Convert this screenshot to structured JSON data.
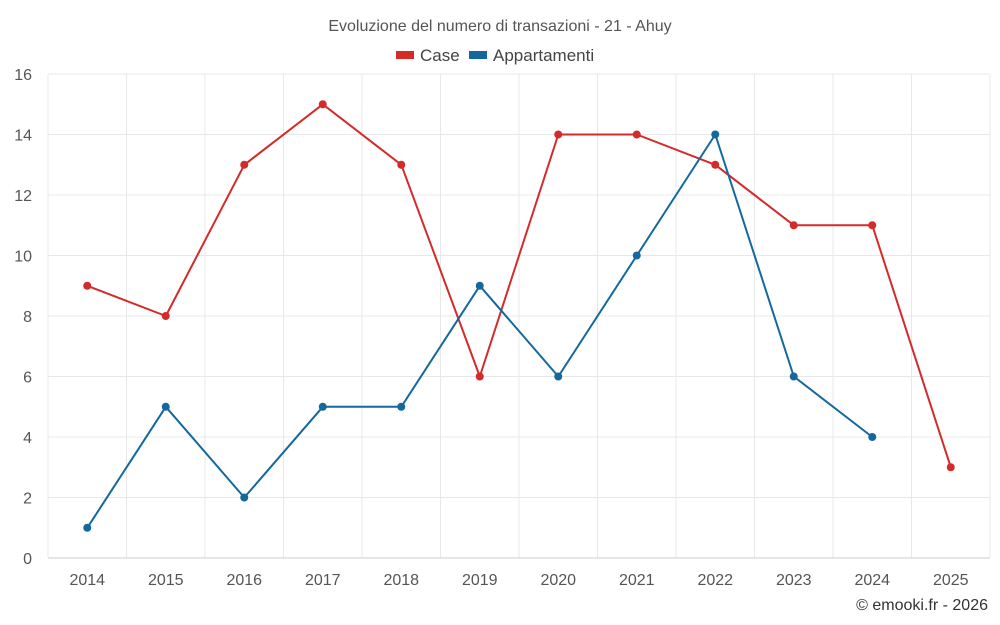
{
  "chart_data": {
    "type": "line",
    "title": "Evoluzione del numero di transazioni - 21 - Ahuy",
    "categories": [
      "2014",
      "2015",
      "2016",
      "2017",
      "2018",
      "2019",
      "2020",
      "2021",
      "2022",
      "2023",
      "2024",
      "2025"
    ],
    "series": [
      {
        "name": "Case",
        "color": "#d42a2a",
        "values": [
          9,
          8,
          13,
          15,
          13,
          6,
          14,
          14,
          13,
          11,
          11,
          3
        ]
      },
      {
        "name": "Appartamenti",
        "color": "#14689e",
        "values": [
          1,
          5,
          2,
          5,
          5,
          9,
          6,
          10,
          14,
          6,
          4,
          null
        ]
      }
    ],
    "ylim": [
      0,
      16
    ],
    "yticks": [
      0,
      2,
      4,
      6,
      8,
      10,
      12,
      14,
      16
    ],
    "xlabel": "",
    "ylabel": "",
    "legend_position": "top-center",
    "grid": true
  },
  "credit": "© emooki.fr - 2026"
}
